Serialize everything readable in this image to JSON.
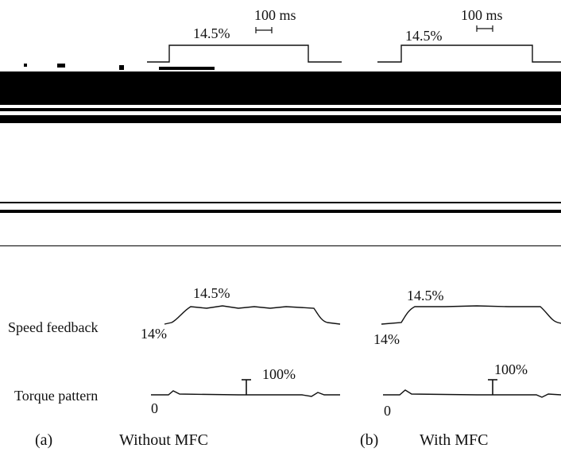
{
  "row_labels": {
    "speed": "Speed feedback",
    "torque": "Torque pattern"
  },
  "panels": [
    {
      "label": "(a)",
      "caption": "Without MFC",
      "reference_level": "14.5%",
      "time_scale": "100 ms",
      "speed_high": "14.5%",
      "speed_low": "14%",
      "torque_scale": "100%",
      "torque_zero": "0"
    },
    {
      "label": "(b)",
      "caption": "With MFC",
      "reference_level": "14.5%",
      "time_scale": "100 ms",
      "speed_high": "14.5%",
      "speed_low": "14%",
      "torque_scale": "100%",
      "torque_zero": "0"
    }
  ]
}
